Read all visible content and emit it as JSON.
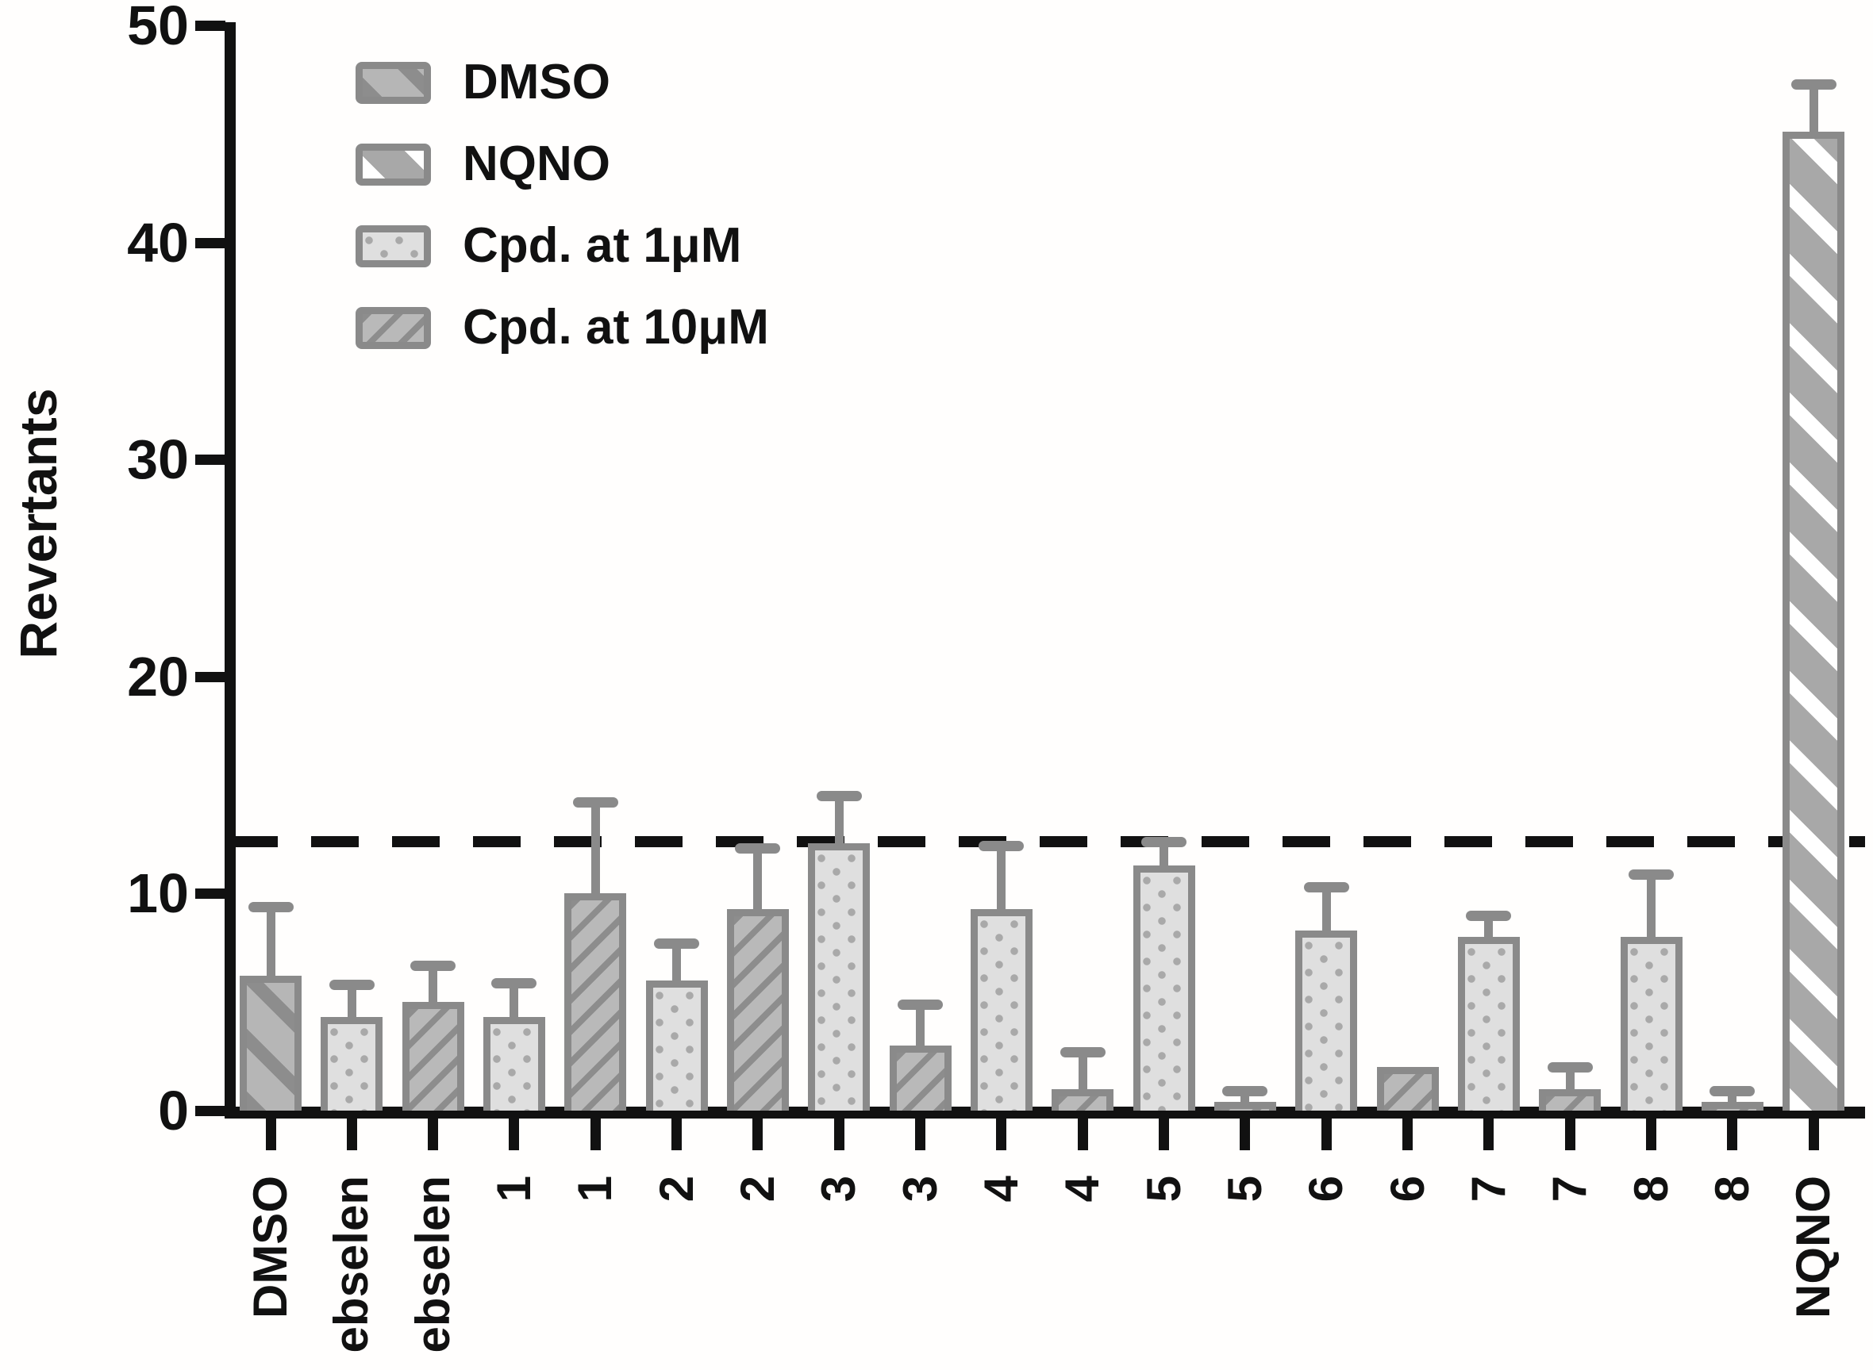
{
  "y_axis": {
    "label": "Revertants",
    "ticks": [
      0,
      10,
      20,
      30,
      40,
      50
    ]
  },
  "legend": [
    {
      "label": "DMSO",
      "pattern": "dmso"
    },
    {
      "label": "NQNO",
      "pattern": "nqno"
    },
    {
      "label": "Cpd. at 1μM",
      "pattern": "dot"
    },
    {
      "label": "Cpd. at 10μM",
      "pattern": "hatch"
    }
  ],
  "colors": {
    "bar_outline": "#8a8a8a",
    "dmso_fill": "#b6b6b6",
    "dmso_stripe": "#8d8d8d",
    "nqno_fill": "#a8a8a8",
    "nqno_stripe": "#ffffff",
    "cpd1um_fill": "#dfdfdf",
    "cpd1um_dot": "#a9a9a9",
    "cpd10um_fill": "#b9b9b9",
    "cpd10um_stripe": "#8d8d8d",
    "axis": "#111111"
  },
  "chart_data": {
    "type": "bar",
    "title": "",
    "xlabel": "",
    "ylabel": "Revertants",
    "ylim": [
      0,
      50
    ],
    "grid": false,
    "legend_position": "top-left",
    "legend_entries": [
      "DMSO",
      "NQNO",
      "Cpd. at 1μM",
      "Cpd. at 10μM"
    ],
    "categories": [
      "DMSO",
      "ebselen",
      "ebselen",
      "1",
      "1",
      "2",
      "2",
      "3",
      "3",
      "4",
      "4",
      "5",
      "5",
      "6",
      "6",
      "7",
      "7",
      "8",
      "8",
      "NQNO"
    ],
    "series_of_each_bar": [
      "DMSO",
      "Cpd. at 1μM",
      "Cpd. at 10μM",
      "Cpd. at 1μM",
      "Cpd. at 10μM",
      "Cpd. at 1μM",
      "Cpd. at 10μM",
      "Cpd. at 1μM",
      "Cpd. at 10μM",
      "Cpd. at 1μM",
      "Cpd. at 10μM",
      "Cpd. at 1μM",
      "Cpd. at 10μM",
      "Cpd. at 1μM",
      "Cpd. at 10μM",
      "Cpd. at 1μM",
      "Cpd. at 10μM",
      "Cpd. at 1μM",
      "Cpd. at 10μM",
      "NQNO"
    ],
    "values": [
      6.2,
      4.3,
      5.0,
      4.3,
      10.0,
      6.0,
      9.3,
      12.3,
      3.0,
      9.3,
      1.0,
      11.3,
      0.4,
      8.3,
      2.0,
      8.0,
      1.0,
      8.0,
      0.4,
      45.1
    ],
    "errors_plus": [
      3.2,
      1.5,
      1.7,
      1.6,
      4.2,
      1.7,
      2.8,
      2.2,
      1.9,
      2.9,
      1.7,
      1.1,
      0.5,
      2.0,
      0,
      1.0,
      1.0,
      2.9,
      0.5,
      2.2
    ],
    "patterns": [
      "dmso",
      "dot",
      "hatch",
      "dot",
      "hatch",
      "dot",
      "hatch",
      "dot",
      "hatch",
      "dot",
      "hatch",
      "dot",
      "hatch",
      "dot",
      "hatch",
      "dot",
      "hatch",
      "dot",
      "hatch",
      "nqno"
    ],
    "dashed_line_y": 12.4
  }
}
